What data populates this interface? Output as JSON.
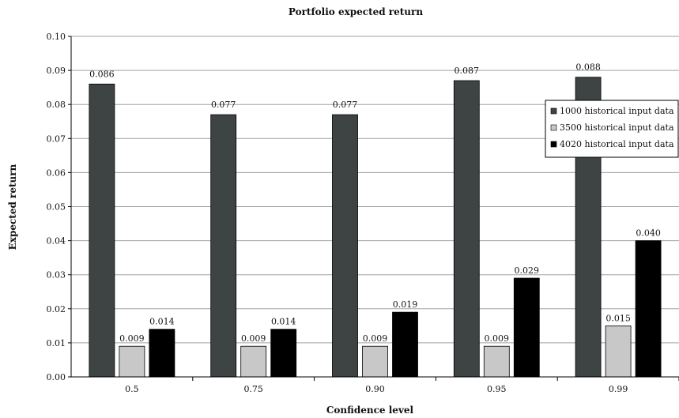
{
  "chart_data": {
    "type": "bar",
    "title": "Portfolio expected return",
    "xlabel": "Confidence level",
    "ylabel": "Expected return",
    "categories": [
      "0.5",
      "0.75",
      "0.90",
      "0.95",
      "0.99"
    ],
    "ylim": [
      0,
      0.1
    ],
    "yticks": [
      "0.00",
      "0.01",
      "0.02",
      "0.03",
      "0.04",
      "0.05",
      "0.06",
      "0.07",
      "0.08",
      "0.09",
      "0.10"
    ],
    "grid": true,
    "legend_position": "right",
    "series": [
      {
        "name": "1000 historical input data",
        "color": "#3d4443",
        "values": [
          0.086,
          0.077,
          0.077,
          0.087,
          0.088
        ],
        "labels": [
          "0.086",
          "0.077",
          "0.077",
          "0.087",
          "0.088"
        ]
      },
      {
        "name": "3500 historical input data",
        "color": "#c8c8c8",
        "values": [
          0.009,
          0.009,
          0.009,
          0.009,
          0.015
        ],
        "labels": [
          "0.009",
          "0.009",
          "0.009",
          "0.009",
          "0.015"
        ]
      },
      {
        "name": "4020 historical input data",
        "color": "#000000",
        "values": [
          0.014,
          0.014,
          0.019,
          0.029,
          0.04
        ],
        "labels": [
          "0.014",
          "0.014",
          "0.019",
          "0.029",
          "0.040"
        ]
      }
    ]
  }
}
